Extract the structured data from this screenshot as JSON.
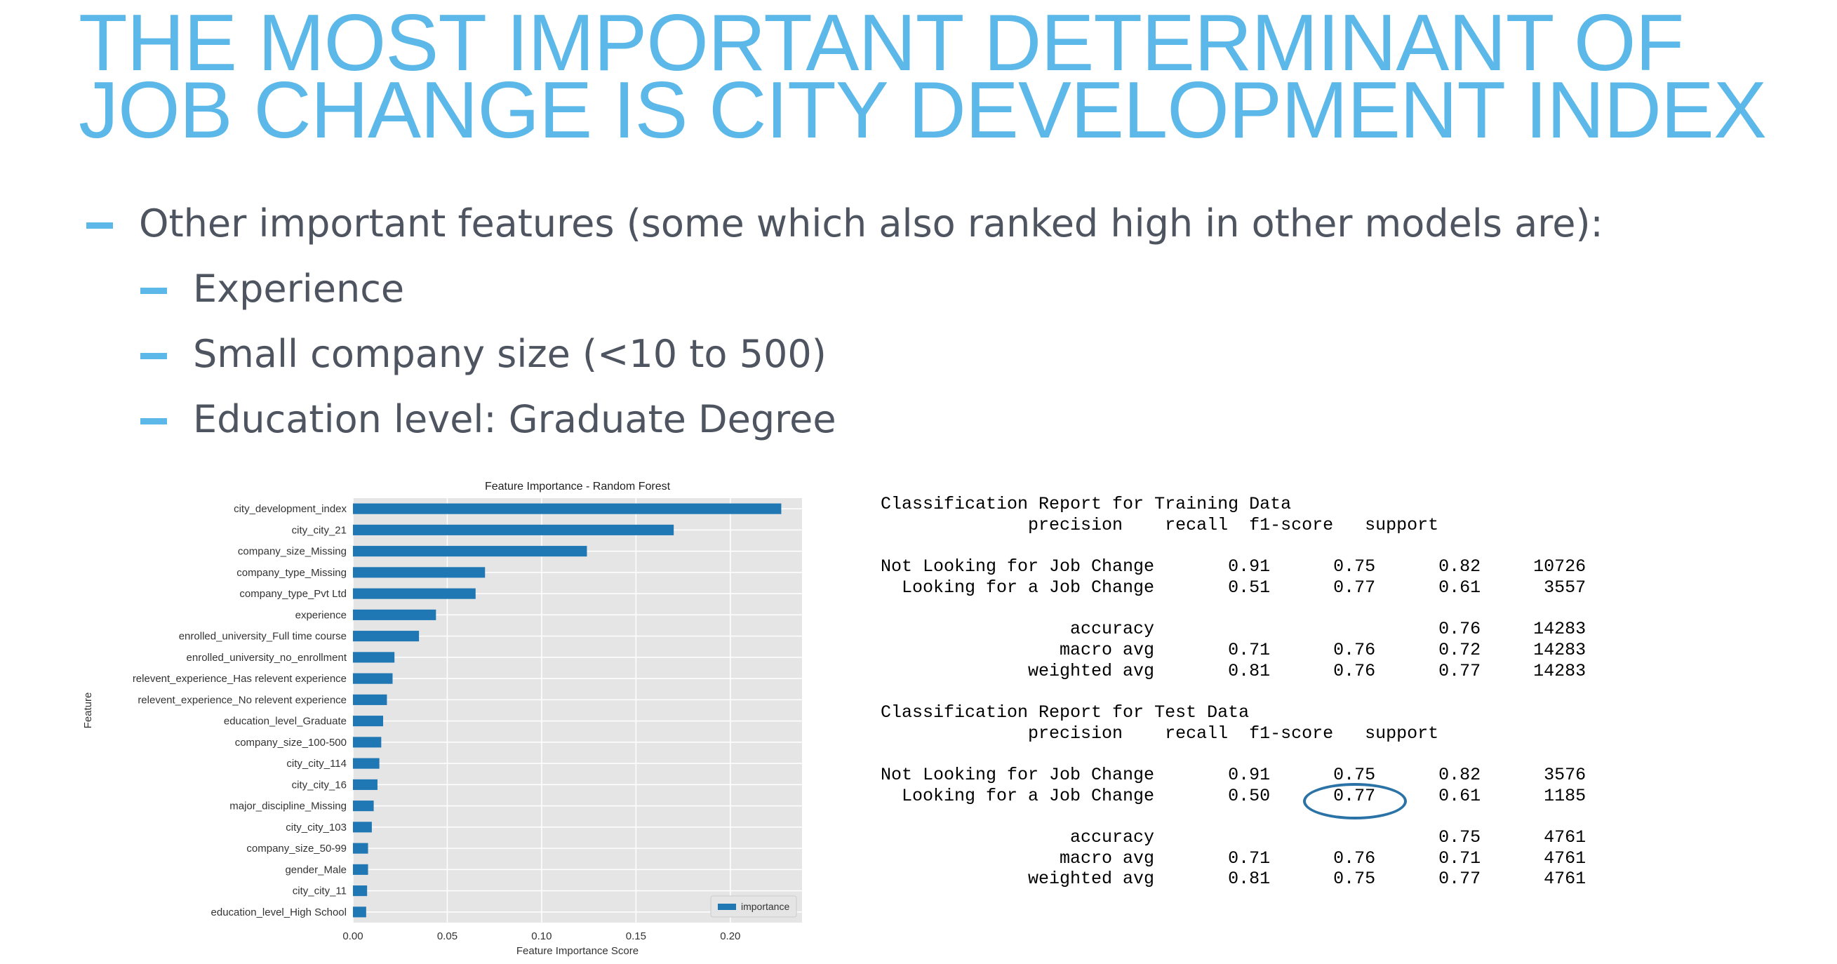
{
  "slide": {
    "title_line1": "THE MOST IMPORTANT DETERMINANT OF",
    "title_line2": "JOB CHANGE IS CITY DEVELOPMENT INDEX",
    "accent_color": "#5bb8e8",
    "bullets": [
      "Other important features (some which also ranked high in other models are):",
      "Experience",
      "Small company size (<10 to 500)",
      "Education level: Graduate Degree"
    ]
  },
  "chart_data": {
    "type": "bar",
    "orientation": "horizontal",
    "title": "Feature Importance - Random Forest",
    "xlabel": "Feature Importance Score",
    "ylabel": "Feature",
    "xlim": [
      0,
      0.238
    ],
    "xticks": [
      "0.00",
      "0.05",
      "0.10",
      "0.15",
      "0.20"
    ],
    "grid": true,
    "legend": "bottom-right",
    "series": [
      {
        "name": "importance",
        "color": "#1f77b4"
      }
    ],
    "categories": [
      "city_development_index",
      "city_city_21",
      "company_size_Missing",
      "company_type_Missing",
      "company_type_Pvt Ltd",
      "experience",
      "enrolled_university_Full time course",
      "enrolled_university_no_enrollment",
      "relevent_experience_Has relevent experience",
      "relevent_experience_No relevent experience",
      "education_level_Graduate",
      "company_size_100-500",
      "city_city_114",
      "city_city_16",
      "major_discipline_Missing",
      "city_city_103",
      "company_size_50-99",
      "gender_Male",
      "city_city_11",
      "education_level_High School"
    ],
    "values": [
      0.227,
      0.17,
      0.124,
      0.07,
      0.065,
      0.044,
      0.035,
      0.022,
      0.021,
      0.018,
      0.016,
      0.015,
      0.014,
      0.013,
      0.011,
      0.01,
      0.008,
      0.008,
      0.0075,
      0.007
    ]
  },
  "report": {
    "lines": [
      "Classification Report for Training Data",
      "              precision    recall  f1-score   support",
      "",
      "Not Looking for Job Change       0.91      0.75      0.82     10726",
      "  Looking for a Job Change       0.51      0.77      0.61      3557",
      "",
      "                  accuracy                           0.76     14283",
      "                 macro avg       0.71      0.76      0.72     14283",
      "              weighted avg       0.81      0.76      0.77     14283",
      "",
      "Classification Report for Test Data",
      "              precision    recall  f1-score   support",
      "",
      "Not Looking for Job Change       0.91      0.75      0.82      3576",
      "  Looking for a Job Change       0.50      0.77      0.61      1185",
      "",
      "                  accuracy                           0.75      4761",
      "                 macro avg       0.71      0.76      0.71      4761",
      "              weighted avg       0.81      0.75      0.77      4761"
    ],
    "highlight_color": "#2b73a6"
  }
}
